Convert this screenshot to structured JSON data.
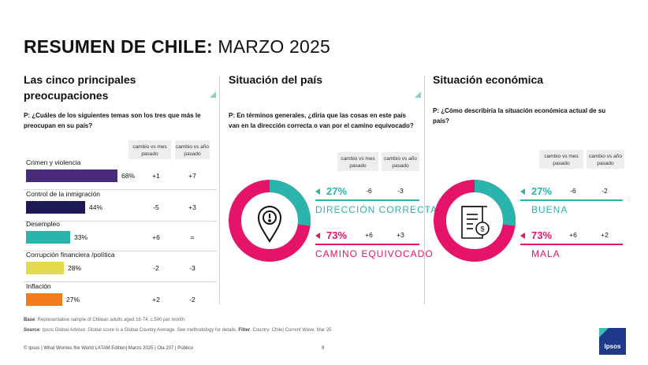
{
  "header": {
    "title_bold": "RESUMEN DE CHILE:",
    "title_rest": "MARZO 2025"
  },
  "colors": {
    "accent_teal": "#2ab4ac",
    "accent_pink": "#e6136b",
    "navy": "#1d1b55",
    "purple": "#4a2a7a"
  },
  "concerns": {
    "title": "Las cinco principales preocupaciones",
    "question": "P: ¿Cuáles de los siguientes temas son los tres que más le preocupan en su país?",
    "col1": "cambio vs mes pasado",
    "col2": "cambio vs año pasado",
    "items": [
      {
        "label": "Crimen y violencia",
        "pct": "68%",
        "value": 68,
        "color": "#4a2a7a",
        "d1": "+1",
        "d2": "+7"
      },
      {
        "label": "Control de la inmigración",
        "pct": "44%",
        "value": 44,
        "color": "#1d1b55",
        "d1": "-5",
        "d2": "+3"
      },
      {
        "label": "Desempleo",
        "pct": "33%",
        "value": 33,
        "color": "#2ab4ac",
        "d1": "+6",
        "d2": "="
      },
      {
        "label": "Corrupción financiera /política",
        "pct": "28%",
        "value": 28,
        "color": "#e2d94c",
        "d1": "-2",
        "d2": "-3"
      },
      {
        "label": "Inflación",
        "pct": "27%",
        "value": 27,
        "color": "#f27b1d",
        "d1": "+2",
        "d2": "-2"
      }
    ]
  },
  "country": {
    "title": "Situación del país",
    "question": "P: En términos generales, ¿diría que las cosas en este país van en la dirección correcta o van por el camino equivocado?",
    "col1": "cambio vs mes pasado",
    "col2": "cambio vs año pasado",
    "icon": "location-warning-icon",
    "positive": {
      "pct": "27%",
      "value": 27,
      "d1": "-6",
      "d2": "-3",
      "label": "DIRECCIÓN CORRECTA"
    },
    "negative": {
      "pct": "73%",
      "value": 73,
      "d1": "+6",
      "d2": "+3",
      "label": "CAMINO EQUIVOCADO"
    }
  },
  "economy": {
    "title": "Situación económica",
    "question": "P: ¿Cómo describiría la situación económica actual de su país?",
    "col1": "cambio vs mes pasado",
    "col2": "cambio vs año pasado",
    "icon": "invoice-coin-icon",
    "positive": {
      "pct": "27%",
      "value": 27,
      "d1": "-6",
      "d2": "-2",
      "label": "BUENA"
    },
    "negative": {
      "pct": "73%",
      "value": 73,
      "d1": "+6",
      "d2": "+2",
      "label": "MALA"
    }
  },
  "footnotes": {
    "base_label": "Base",
    "base_text": ": Representative sample of Chilean adults aged 16-74. c.500 per month",
    "source_label": "Source",
    "source_text": ": Ipsos Global Advisor. Global score is a Global Country Average. See methodology for details.",
    "filter_label": "Filter",
    "filter_text": ": Country: Chile| Current Wave: Mar 25"
  },
  "footer": {
    "text": "© Ipsos | What Worries the World LATAM Edition| Marzo 2025 | Ola 207 | Público",
    "page": "9",
    "logo": "Ipsos"
  }
}
